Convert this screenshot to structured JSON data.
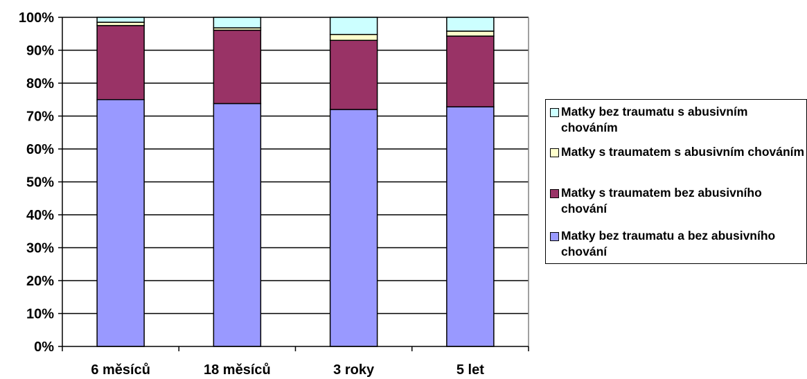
{
  "chart_data": {
    "type": "bar",
    "stacked": true,
    "categories": [
      "6 měsíců",
      "18 měsíců",
      "3 roky",
      "5 let"
    ],
    "ylim": [
      0,
      100
    ],
    "y_ticks": [
      "0%",
      "10%",
      "20%",
      "30%",
      "40%",
      "50%",
      "60%",
      "70%",
      "80%",
      "90%",
      "100%"
    ],
    "grid": true,
    "legend_position": "right",
    "series": [
      {
        "name": "Matky bez traumatu a bez abusivního chování",
        "color": "#9999ff",
        "values": [
          75,
          73.8,
          72,
          72.8
        ]
      },
      {
        "name": "Matky s traumatem bez abusivního chování",
        "color": "#993366",
        "values": [
          22.5,
          22.3,
          21,
          21.5
        ]
      },
      {
        "name": "Matky s traumatem s abusivním chováním",
        "color": "#ffffcc",
        "values": [
          1,
          0.7,
          1.8,
          1.5
        ]
      },
      {
        "name": "Matky bez traumatu s abusivním chováním",
        "color": "#ccffff",
        "values": [
          1.5,
          3.2,
          5.2,
          4.2
        ]
      }
    ]
  }
}
